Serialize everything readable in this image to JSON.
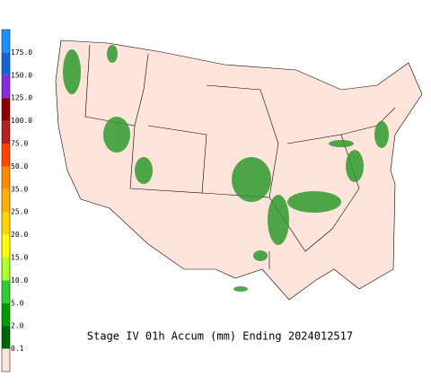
{
  "legend": {
    "items": [
      {
        "label": "175.0",
        "color": "#1e90ff"
      },
      {
        "label": "150.0",
        "color": "#1464d2"
      },
      {
        "label": "125.0",
        "color": "#8a2be2"
      },
      {
        "label": "100.0",
        "color": "#8b0000"
      },
      {
        "label": "75.0",
        "color": "#b22222"
      },
      {
        "label": "50.0",
        "color": "#ff4500"
      },
      {
        "label": "35.0",
        "color": "#ff8c00"
      },
      {
        "label": "25.0",
        "color": "#ffb000"
      },
      {
        "label": "20.0",
        "color": "#ffd700"
      },
      {
        "label": "15.0",
        "color": "#ffff00"
      },
      {
        "label": "10.0",
        "color": "#adff2f"
      },
      {
        "label": "5.0",
        "color": "#32cd32"
      },
      {
        "label": "2.0",
        "color": "#009900"
      },
      {
        "label": "0.1",
        "color": "#006400"
      }
    ],
    "base_color": "#ffe4dc"
  },
  "caption": "Stage IV 01h Accum (mm) Ending 2024012517"
}
